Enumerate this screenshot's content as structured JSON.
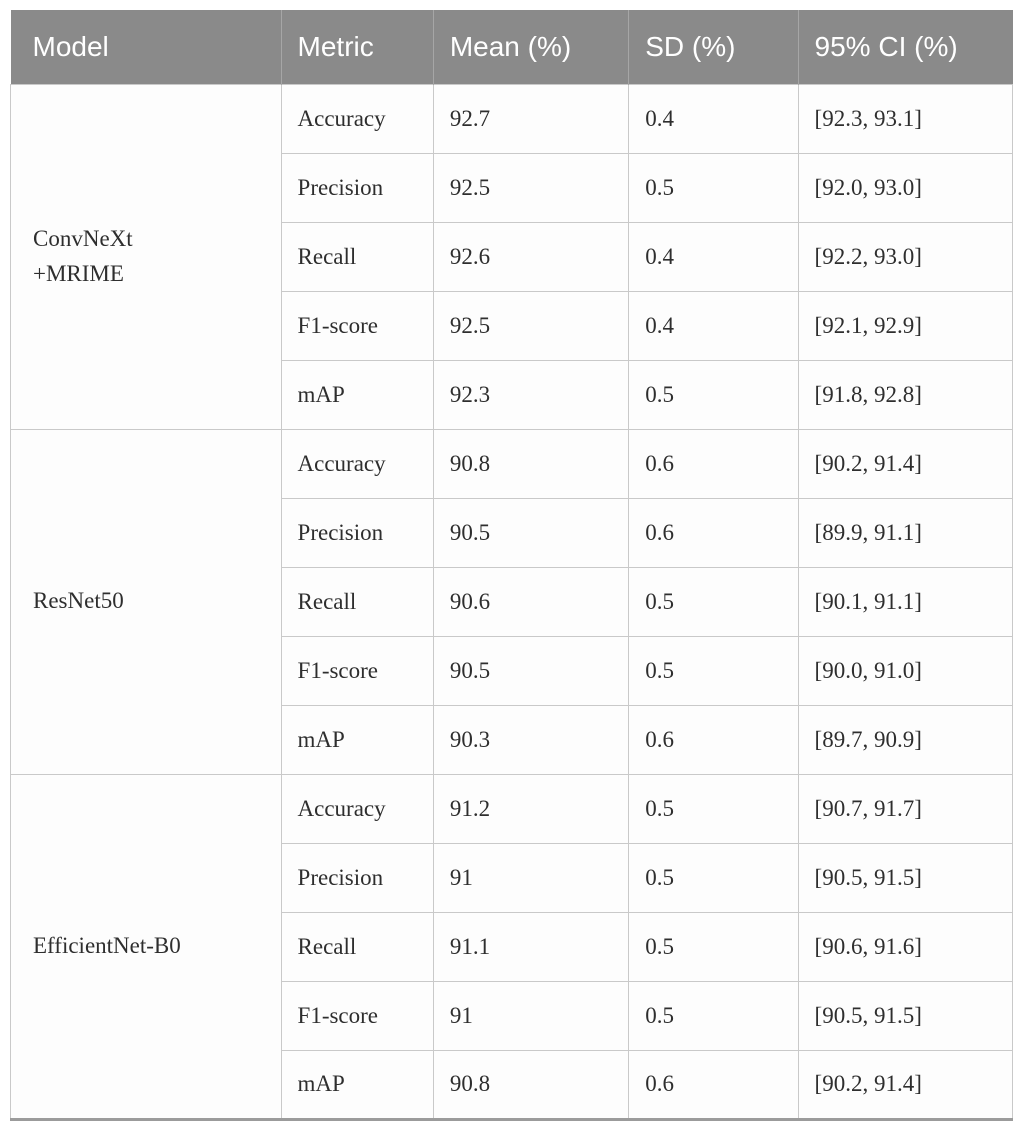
{
  "document": {
    "kind": "journal-article-table"
  },
  "table": {
    "columns": [
      "Model",
      "Metric",
      "Mean (%)",
      "SD (%)",
      "95% CI (%)"
    ],
    "groups": [
      {
        "model": "ConvNeXt +MRIME",
        "model_lines": [
          "ConvNeXt",
          "+MRIME"
        ],
        "rows": [
          {
            "metric": "Accuracy",
            "mean": "92.7",
            "sd": "0.4",
            "ci": "[92.3, 93.1]"
          },
          {
            "metric": "Precision",
            "mean": "92.5",
            "sd": "0.5",
            "ci": "[92.0, 93.0]"
          },
          {
            "metric": "Recall",
            "mean": "92.6",
            "sd": "0.4",
            "ci": "[92.2, 93.0]"
          },
          {
            "metric": "F1-score",
            "mean": "92.5",
            "sd": "0.4",
            "ci": "[92.1, 92.9]"
          },
          {
            "metric": "mAP",
            "mean": "92.3",
            "sd": "0.5",
            "ci": "[91.8, 92.8]"
          }
        ]
      },
      {
        "model": "ResNet50",
        "model_lines": [
          "ResNet50"
        ],
        "rows": [
          {
            "metric": "Accuracy",
            "mean": "90.8",
            "sd": "0.6",
            "ci": "[90.2, 91.4]"
          },
          {
            "metric": "Precision",
            "mean": "90.5",
            "sd": "0.6",
            "ci": "[89.9, 91.1]"
          },
          {
            "metric": "Recall",
            "mean": "90.6",
            "sd": "0.5",
            "ci": "[90.1, 91.1]"
          },
          {
            "metric": "F1-score",
            "mean": "90.5",
            "sd": "0.5",
            "ci": "[90.0, 91.0]"
          },
          {
            "metric": "mAP",
            "mean": "90.3",
            "sd": "0.6",
            "ci": "[89.7, 90.9]"
          }
        ]
      },
      {
        "model": "EfficientNet-B0",
        "model_lines": [
          "EfficientNet-B0"
        ],
        "rows": [
          {
            "metric": "Accuracy",
            "mean": "91.2",
            "sd": "0.5",
            "ci": "[90.7, 91.7]"
          },
          {
            "metric": "Precision",
            "mean": "91",
            "sd": "0.5",
            "ci": "[90.5, 91.5]"
          },
          {
            "metric": "Recall",
            "mean": "91.1",
            "sd": "0.5",
            "ci": "[90.6, 91.6]"
          },
          {
            "metric": "F1-score",
            "mean": "91",
            "sd": "0.5",
            "ci": "[90.5, 91.5]"
          },
          {
            "metric": "mAP",
            "mean": "90.8",
            "sd": "0.6",
            "ci": "[90.2, 91.4]"
          }
        ]
      }
    ]
  },
  "colors": {
    "header_bg": "#8a8a8a",
    "header_text": "#ffffff",
    "header_divider": "#a6a6a6",
    "cell_border": "#c9c9c9",
    "body_text": "#2e2e2e",
    "table_bottom_border": "#9b9b9b",
    "row_bg": "#fdfdfd"
  }
}
